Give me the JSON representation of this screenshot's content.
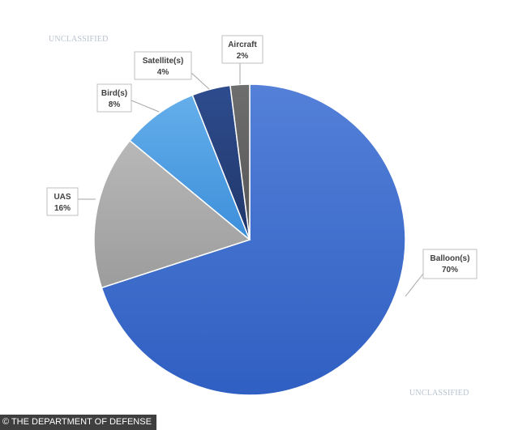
{
  "classification_marking": "UNCLASSIFIED",
  "credit": "© THE DEPARTMENT OF DEFENSE",
  "chart_data": {
    "type": "pie",
    "title": "",
    "start_angle_deg": 0,
    "direction": "clockwise",
    "slices": [
      {
        "label": "Balloon(s)",
        "value": 70,
        "display": "70%",
        "color": "#3f6fcf"
      },
      {
        "label": "UAS",
        "value": 16,
        "display": "16%",
        "color": "#a9a9a9"
      },
      {
        "label": "Bird(s)",
        "value": 8,
        "display": "8%",
        "color": "#4f9fe2"
      },
      {
        "label": "Satellite(s)",
        "value": 4,
        "display": "4%",
        "color": "#26407a"
      },
      {
        "label": "Aircraft",
        "value": 2,
        "display": "2%",
        "color": "#636363"
      }
    ],
    "legend": "none",
    "data_labels": "callout-boxes"
  }
}
